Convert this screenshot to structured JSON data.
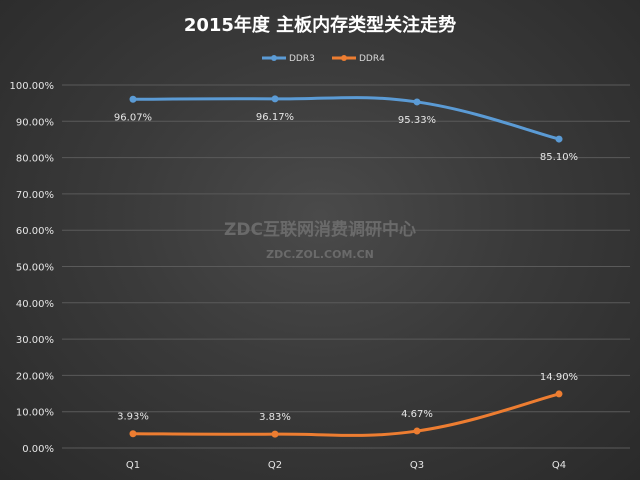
{
  "chart_data": {
    "type": "line",
    "title": "2015年度 主板内存类型关注走势",
    "categories": [
      "Q1",
      "Q2",
      "Q3",
      "Q4"
    ],
    "ylim": [
      0,
      100
    ],
    "yticks": [
      "0.00%",
      "10.00%",
      "20.00%",
      "30.00%",
      "40.00%",
      "50.00%",
      "60.00%",
      "70.00%",
      "80.00%",
      "90.00%",
      "100.00%"
    ],
    "series": [
      {
        "name": "DDR3",
        "color": "#5b9bd5",
        "values": [
          96.07,
          96.17,
          95.33,
          85.1
        ],
        "labels": [
          "96.07%",
          "96.17%",
          "95.33%",
          "85.10%"
        ]
      },
      {
        "name": "DDR4",
        "color": "#ed7d31",
        "values": [
          3.93,
          3.83,
          4.67,
          14.9
        ],
        "labels": [
          "3.93%",
          "3.83%",
          "4.67%",
          "14.90%"
        ]
      }
    ],
    "legend_position": "top",
    "grid": true
  },
  "watermark": {
    "line1": "ZDC互联网消费调研中心",
    "line2": "ZDC.ZOL.COM.CN"
  }
}
